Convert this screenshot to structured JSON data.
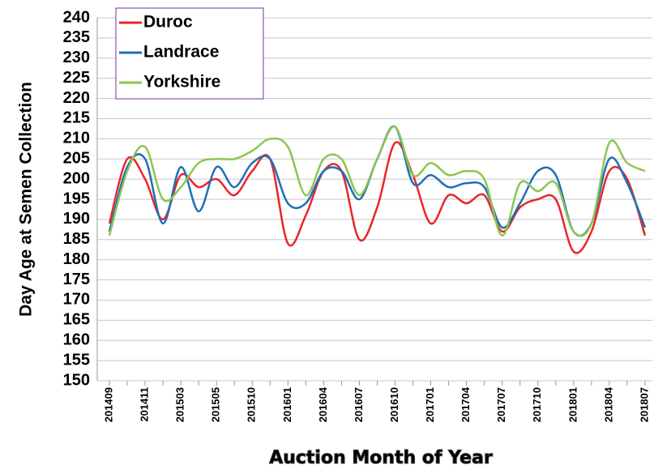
{
  "chart_data": {
    "type": "line",
    "x_label": "Auction Month of Year",
    "y_label": "Day Age at Semen Collection",
    "categories": [
      "201409",
      null,
      "201411",
      null,
      "201503",
      null,
      "201505",
      null,
      "201510",
      null,
      "201601",
      null,
      "201604",
      null,
      "201607",
      null,
      "201610",
      null,
      "201701",
      null,
      "201704",
      null,
      "201707",
      null,
      "201710",
      null,
      "201801",
      null,
      "201804",
      null,
      "201807"
    ],
    "series": [
      {
        "name": "Duroc",
        "color": "#e8262b",
        "values": [
          189,
          205,
          200,
          190,
          201,
          198,
          200,
          196,
          202,
          205,
          184,
          191,
          202,
          202,
          185,
          193,
          209,
          201,
          189,
          196,
          194,
          196,
          187,
          193,
          195,
          195,
          182,
          187,
          202,
          200,
          186
        ]
      },
      {
        "name": "Landrace",
        "color": "#1f6fb5",
        "values": [
          187,
          203,
          205,
          189,
          203,
          192,
          203,
          198,
          204,
          205,
          194,
          194,
          202,
          202,
          195,
          205,
          213,
          199,
          201,
          198,
          199,
          198,
          188,
          194,
          202,
          201,
          187,
          189,
          205,
          199,
          188
        ]
      },
      {
        "name": "Yorkshire",
        "color": "#8cc652",
        "values": [
          186,
          202,
          208,
          195,
          198,
          204,
          205,
          205,
          207,
          210,
          208,
          196,
          205,
          205,
          196,
          205,
          213,
          201,
          204,
          201,
          202,
          200,
          186,
          199,
          197,
          199,
          187,
          189,
          209,
          204,
          202
        ]
      }
    ],
    "ylim": [
      150,
      240
    ],
    "yticks": [
      150,
      155,
      160,
      165,
      170,
      175,
      180,
      185,
      190,
      195,
      200,
      205,
      210,
      215,
      220,
      225,
      230,
      235,
      240
    ],
    "grid": true,
    "legend": "upper left"
  }
}
